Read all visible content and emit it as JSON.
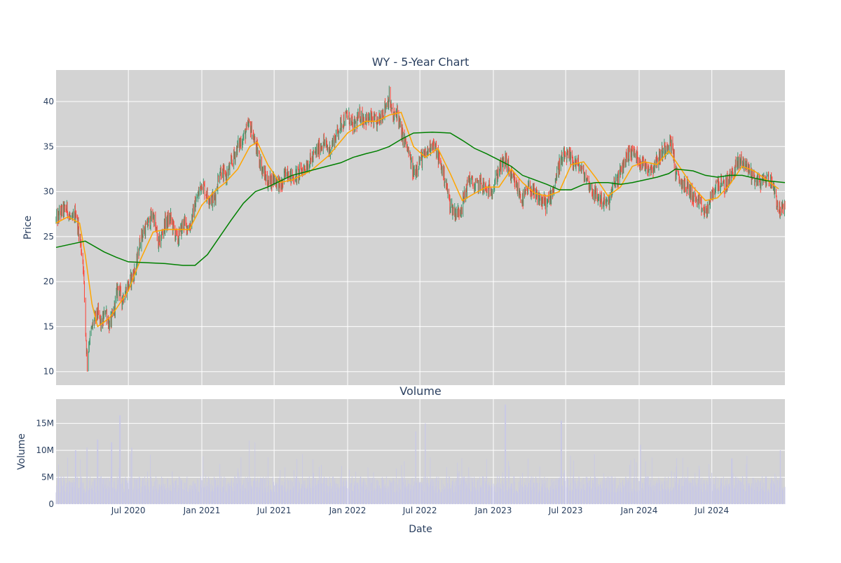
{
  "chart_data": [
    {
      "type": "candlestick",
      "title": "WY - 5-Year Chart",
      "ylabel": "Price",
      "ylim": [
        8.5,
        43.5
      ],
      "yticks": [
        10,
        15,
        20,
        25,
        30,
        35,
        40
      ],
      "xlim": [
        "2020-01-02",
        "2024-12-31"
      ],
      "grid": true,
      "background": "#d3d3d3",
      "colors": {
        "up": "#3d9970",
        "down": "#ff4136",
        "ma_short": "#ffa500",
        "ma_long": "#008000"
      },
      "price_path": [
        [
          "2020-01-02",
          26.8
        ],
        [
          "2020-01-15",
          27.8
        ],
        [
          "2020-01-30",
          28.1
        ],
        [
          "2020-02-10",
          26.5
        ],
        [
          "2020-02-20",
          27.8
        ],
        [
          "2020-03-01",
          25.0
        ],
        [
          "2020-03-10",
          22.0
        ],
        [
          "2020-03-16",
          14.5
        ],
        [
          "2020-03-20",
          11.0
        ],
        [
          "2020-03-25",
          13.5
        ],
        [
          "2020-04-05",
          15.5
        ],
        [
          "2020-04-15",
          16.5
        ],
        [
          "2020-04-25",
          15.0
        ],
        [
          "2020-05-05",
          17.0
        ],
        [
          "2020-05-15",
          15.0
        ],
        [
          "2020-05-25",
          16.5
        ],
        [
          "2020-06-05",
          19.5
        ],
        [
          "2020-06-15",
          18.0
        ],
        [
          "2020-06-25",
          19.0
        ],
        [
          "2020-07-05",
          20.0
        ],
        [
          "2020-07-20",
          21.5
        ],
        [
          "2020-08-01",
          25.0
        ],
        [
          "2020-08-15",
          26.0
        ],
        [
          "2020-09-01",
          27.5
        ],
        [
          "2020-09-15",
          24.0
        ],
        [
          "2020-10-01",
          26.5
        ],
        [
          "2020-10-15",
          27.0
        ],
        [
          "2020-11-01",
          24.5
        ],
        [
          "2020-11-15",
          26.5
        ],
        [
          "2020-12-01",
          26.0
        ],
        [
          "2020-12-15",
          28.5
        ],
        [
          "2021-01-01",
          31.0
        ],
        [
          "2021-01-15",
          29.5
        ],
        [
          "2021-02-01",
          29.0
        ],
        [
          "2021-02-15",
          32.5
        ],
        [
          "2021-03-01",
          31.5
        ],
        [
          "2021-03-15",
          33.0
        ],
        [
          "2021-04-01",
          35.0
        ],
        [
          "2021-04-15",
          36.0
        ],
        [
          "2021-05-01",
          37.5
        ],
        [
          "2021-05-10",
          36.0
        ],
        [
          "2021-05-20",
          34.5
        ],
        [
          "2021-06-01",
          32.5
        ],
        [
          "2021-06-15",
          31.0
        ],
        [
          "2021-07-01",
          31.5
        ],
        [
          "2021-07-20",
          30.5
        ],
        [
          "2021-08-01",
          32.5
        ],
        [
          "2021-08-15",
          31.5
        ],
        [
          "2021-09-01",
          32.0
        ],
        [
          "2021-10-01",
          33.5
        ],
        [
          "2021-11-01",
          35.5
        ],
        [
          "2021-11-15",
          34.5
        ],
        [
          "2021-12-01",
          36.0
        ],
        [
          "2021-12-15",
          37.5
        ],
        [
          "2022-01-01",
          38.5
        ],
        [
          "2022-01-15",
          37.0
        ],
        [
          "2022-02-01",
          38.5
        ],
        [
          "2022-02-15",
          38.0
        ],
        [
          "2022-03-01",
          38.0
        ],
        [
          "2022-03-15",
          37.5
        ],
        [
          "2022-04-01",
          39.0
        ],
        [
          "2022-04-15",
          40.5
        ],
        [
          "2022-04-25",
          38.0
        ],
        [
          "2022-05-05",
          39.0
        ],
        [
          "2022-05-15",
          36.5
        ],
        [
          "2022-05-25",
          35.5
        ],
        [
          "2022-06-01",
          34.5
        ],
        [
          "2022-06-15",
          32.0
        ],
        [
          "2022-07-01",
          33.5
        ],
        [
          "2022-07-15",
          34.0
        ],
        [
          "2022-08-01",
          35.5
        ],
        [
          "2022-08-15",
          34.0
        ],
        [
          "2022-09-01",
          31.5
        ],
        [
          "2022-09-15",
          28.5
        ],
        [
          "2022-09-30",
          27.5
        ],
        [
          "2022-10-15",
          28.5
        ],
        [
          "2022-11-01",
          31.5
        ],
        [
          "2022-11-15",
          30.5
        ],
        [
          "2022-12-01",
          31.0
        ],
        [
          "2022-12-15",
          30.0
        ],
        [
          "2023-01-01",
          30.5
        ],
        [
          "2023-01-15",
          32.5
        ],
        [
          "2023-02-01",
          33.5
        ],
        [
          "2023-02-15",
          31.5
        ],
        [
          "2023-03-01",
          30.5
        ],
        [
          "2023-03-15",
          29.0
        ],
        [
          "2023-04-01",
          30.5
        ],
        [
          "2023-04-15",
          29.5
        ],
        [
          "2023-05-01",
          29.0
        ],
        [
          "2023-05-15",
          28.5
        ],
        [
          "2023-06-01",
          30.5
        ],
        [
          "2023-06-15",
          33.0
        ],
        [
          "2023-07-01",
          34.0
        ],
        [
          "2023-07-15",
          33.5
        ],
        [
          "2023-08-01",
          33.0
        ],
        [
          "2023-08-15",
          32.0
        ],
        [
          "2023-09-01",
          30.5
        ],
        [
          "2023-09-15",
          29.5
        ],
        [
          "2023-10-01",
          29.0
        ],
        [
          "2023-10-15",
          28.5
        ],
        [
          "2023-11-01",
          31.0
        ],
        [
          "2023-11-15",
          32.0
        ],
        [
          "2023-12-01",
          34.0
        ],
        [
          "2023-12-15",
          34.5
        ],
        [
          "2024-01-01",
          33.5
        ],
        [
          "2024-01-15",
          33.0
        ],
        [
          "2024-02-01",
          32.5
        ],
        [
          "2024-02-15",
          33.5
        ],
        [
          "2024-03-01",
          34.5
        ],
        [
          "2024-03-15",
          35.5
        ],
        [
          "2024-03-25",
          35.0
        ],
        [
          "2024-04-01",
          32.0
        ],
        [
          "2024-04-15",
          31.0
        ],
        [
          "2024-05-01",
          30.5
        ],
        [
          "2024-05-15",
          29.5
        ],
        [
          "2024-06-01",
          28.5
        ],
        [
          "2024-06-15",
          27.5
        ],
        [
          "2024-07-01",
          29.5
        ],
        [
          "2024-07-15",
          31.0
        ],
        [
          "2024-08-01",
          30.5
        ],
        [
          "2024-08-15",
          31.5
        ],
        [
          "2024-09-01",
          33.0
        ],
        [
          "2024-09-15",
          33.5
        ],
        [
          "2024-10-01",
          32.5
        ],
        [
          "2024-10-15",
          31.5
        ],
        [
          "2024-11-01",
          31.0
        ],
        [
          "2024-11-15",
          31.5
        ],
        [
          "2024-12-01",
          31.0
        ],
        [
          "2024-12-15",
          28.0
        ],
        [
          "2024-12-31",
          28.0
        ]
      ],
      "ma_short": [
        [
          "2020-01-02",
          26.5
        ],
        [
          "2020-02-01",
          27.2
        ],
        [
          "2020-03-01",
          26.5
        ],
        [
          "2020-03-15",
          23.0
        ],
        [
          "2020-04-01",
          17.5
        ],
        [
          "2020-04-15",
          15.0
        ],
        [
          "2020-05-01",
          15.5
        ],
        [
          "2020-05-15",
          16.0
        ],
        [
          "2020-06-01",
          17.0
        ],
        [
          "2020-07-01",
          19.0
        ],
        [
          "2020-08-01",
          22.5
        ],
        [
          "2020-09-01",
          25.5
        ],
        [
          "2020-10-01",
          25.8
        ],
        [
          "2020-11-01",
          25.8
        ],
        [
          "2020-12-01",
          25.8
        ],
        [
          "2021-01-01",
          28.5
        ],
        [
          "2021-02-01",
          30.0
        ],
        [
          "2021-03-01",
          31.0
        ],
        [
          "2021-04-01",
          32.5
        ],
        [
          "2021-05-01",
          35.0
        ],
        [
          "2021-05-20",
          35.5
        ],
        [
          "2021-06-15",
          33.0
        ],
        [
          "2021-07-15",
          31.0
        ],
        [
          "2021-08-15",
          31.3
        ],
        [
          "2021-10-01",
          32.3
        ],
        [
          "2021-11-15",
          34.0
        ],
        [
          "2022-01-01",
          36.5
        ],
        [
          "2022-02-15",
          37.8
        ],
        [
          "2022-03-15",
          37.8
        ],
        [
          "2022-04-15",
          38.5
        ],
        [
          "2022-05-15",
          38.8
        ],
        [
          "2022-06-15",
          35.0
        ],
        [
          "2022-07-15",
          33.8
        ],
        [
          "2022-08-15",
          34.8
        ],
        [
          "2022-09-15",
          32.0
        ],
        [
          "2022-10-15",
          29.0
        ],
        [
          "2022-11-15",
          29.8
        ],
        [
          "2022-12-15",
          30.5
        ],
        [
          "2023-01-15",
          30.5
        ],
        [
          "2023-02-15",
          32.5
        ],
        [
          "2023-03-15",
          31.0
        ],
        [
          "2023-04-15",
          29.8
        ],
        [
          "2023-05-15",
          29.5
        ],
        [
          "2023-06-15",
          30.0
        ],
        [
          "2023-07-15",
          33.0
        ],
        [
          "2023-08-15",
          33.3
        ],
        [
          "2023-09-15",
          31.5
        ],
        [
          "2023-10-15",
          29.5
        ],
        [
          "2023-11-15",
          30.5
        ],
        [
          "2023-12-15",
          32.8
        ],
        [
          "2024-01-15",
          33.3
        ],
        [
          "2024-02-15",
          33.0
        ],
        [
          "2024-03-15",
          34.5
        ],
        [
          "2024-04-15",
          32.5
        ],
        [
          "2024-05-15",
          30.5
        ],
        [
          "2024-06-15",
          29.0
        ],
        [
          "2024-07-15",
          29.3
        ],
        [
          "2024-08-15",
          30.8
        ],
        [
          "2024-09-15",
          32.8
        ],
        [
          "2024-10-15",
          32.3
        ],
        [
          "2024-11-15",
          31.3
        ],
        [
          "2024-12-15",
          30.3
        ]
      ],
      "ma_long": [
        [
          "2020-01-02",
          23.8
        ],
        [
          "2020-03-15",
          24.5
        ],
        [
          "2020-05-01",
          23.3
        ],
        [
          "2020-06-01",
          22.7
        ],
        [
          "2020-07-01",
          22.2
        ],
        [
          "2020-08-15",
          22.1
        ],
        [
          "2020-10-01",
          22.0
        ],
        [
          "2020-11-15",
          21.8
        ],
        [
          "2020-12-15",
          21.8
        ],
        [
          "2021-01-15",
          23.0
        ],
        [
          "2021-02-15",
          25.0
        ],
        [
          "2021-03-15",
          26.8
        ],
        [
          "2021-04-15",
          28.7
        ],
        [
          "2021-05-15",
          30.0
        ],
        [
          "2021-06-15",
          30.5
        ],
        [
          "2021-08-15",
          31.8
        ],
        [
          "2021-10-15",
          32.5
        ],
        [
          "2021-12-15",
          33.2
        ],
        [
          "2022-01-15",
          33.8
        ],
        [
          "2022-02-15",
          34.2
        ],
        [
          "2022-03-15",
          34.5
        ],
        [
          "2022-04-15",
          35.0
        ],
        [
          "2022-05-15",
          35.8
        ],
        [
          "2022-06-15",
          36.5
        ],
        [
          "2022-08-01",
          36.6
        ],
        [
          "2022-09-15",
          36.5
        ],
        [
          "2022-10-15",
          35.7
        ],
        [
          "2022-11-15",
          34.8
        ],
        [
          "2022-12-15",
          34.2
        ],
        [
          "2023-01-15",
          33.5
        ],
        [
          "2023-02-15",
          32.8
        ],
        [
          "2023-03-15",
          31.8
        ],
        [
          "2023-04-15",
          31.3
        ],
        [
          "2023-05-15",
          30.8
        ],
        [
          "2023-06-15",
          30.2
        ],
        [
          "2023-07-15",
          30.2
        ],
        [
          "2023-08-15",
          30.8
        ],
        [
          "2023-09-15",
          31.0
        ],
        [
          "2023-10-15",
          31.0
        ],
        [
          "2023-11-15",
          30.8
        ],
        [
          "2023-12-15",
          31.0
        ],
        [
          "2024-01-15",
          31.3
        ],
        [
          "2024-02-15",
          31.6
        ],
        [
          "2024-03-15",
          32.0
        ],
        [
          "2024-04-01",
          32.5
        ],
        [
          "2024-05-15",
          32.3
        ],
        [
          "2024-06-15",
          31.8
        ],
        [
          "2024-07-15",
          31.6
        ],
        [
          "2024-08-15",
          31.8
        ],
        [
          "2024-09-15",
          31.8
        ],
        [
          "2024-10-15",
          31.5
        ],
        [
          "2024-11-15",
          31.2
        ],
        [
          "2024-12-31",
          31.0
        ]
      ]
    },
    {
      "type": "bar",
      "title": "Volume",
      "ylabel": "Volume",
      "xlabel": "Date",
      "ylim": [
        0,
        19500000
      ],
      "yticks": [
        0,
        5000000,
        10000000,
        15000000
      ],
      "ytick_labels": [
        "0",
        "5M",
        "10M",
        "15M"
      ],
      "xtick_labels": [
        "Jul 2020",
        "Jan 2021",
        "Jul 2021",
        "Jan 2022",
        "Jul 2022",
        "Jan 2023",
        "Jul 2023",
        "Jan 2024",
        "Jul 2024"
      ],
      "xtick_dates": [
        "2020-07-01",
        "2021-01-01",
        "2021-07-01",
        "2022-01-01",
        "2022-07-01",
        "2023-01-01",
        "2023-07-01",
        "2024-01-01",
        "2024-07-01"
      ],
      "bar_color": "#c8c8e6",
      "typical_volume": 3500000,
      "spikes": [
        [
          "2020-02-20",
          10000000
        ],
        [
          "2020-03-20",
          10500000
        ],
        [
          "2020-04-15",
          12000000
        ],
        [
          "2020-05-20",
          11500000
        ],
        [
          "2020-06-10",
          16500000
        ],
        [
          "2020-07-10",
          10500000
        ],
        [
          "2021-05-01",
          11800000
        ],
        [
          "2021-05-15",
          11500000
        ],
        [
          "2022-06-20",
          13500000
        ],
        [
          "2022-07-15",
          15000000
        ],
        [
          "2022-10-15",
          8500000
        ],
        [
          "2023-01-31",
          18500000
        ],
        [
          "2023-06-20",
          15500000
        ],
        [
          "2024-01-05",
          11000000
        ],
        [
          "2024-08-20",
          8500000
        ],
        [
          "2024-12-20",
          10000000
        ]
      ]
    }
  ]
}
